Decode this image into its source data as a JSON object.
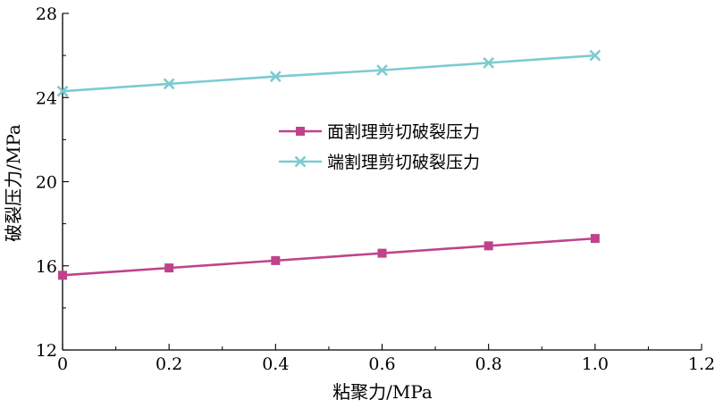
{
  "chart_data": {
    "type": "line",
    "xlabel": "粘聚力/MPa",
    "ylabel": "破裂压力/MPa",
    "xlim": [
      0,
      1.2
    ],
    "ylim": [
      12,
      28
    ],
    "xticks": [
      "0",
      "0.2",
      "0.4",
      "0.6",
      "0.8",
      "1.0",
      "1.2"
    ],
    "yticks": [
      "12",
      "16",
      "20",
      "24",
      "28"
    ],
    "grid": false,
    "legend_position": "center",
    "x": [
      0,
      0.2,
      0.4,
      0.6,
      0.8,
      1.0
    ],
    "series": [
      {
        "name": "面割理剪切破裂压力",
        "values": [
          15.55,
          15.9,
          16.25,
          16.6,
          16.95,
          17.3
        ],
        "color": "#c0428a",
        "marker": "square"
      },
      {
        "name": "端割理剪切破裂压力",
        "values": [
          24.3,
          24.65,
          25.0,
          25.3,
          25.65,
          26.0
        ],
        "color": "#7ccbd0",
        "marker": "x"
      }
    ]
  }
}
